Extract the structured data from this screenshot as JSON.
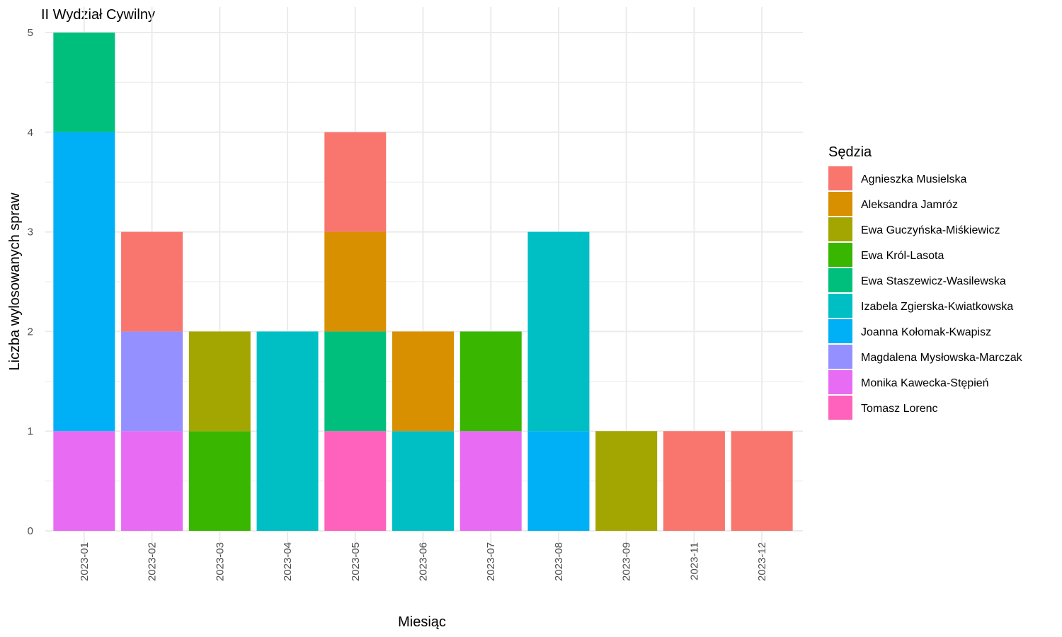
{
  "chart_data": {
    "type": "bar",
    "stacked": true,
    "title": "II Wydział Cywilny",
    "xlabel": "Miesiąc",
    "ylabel": "Liczba wylosowanych spraw",
    "ylim": [
      0,
      5
    ],
    "yticks": [
      "0",
      "1",
      "2",
      "3",
      "4",
      "5"
    ],
    "grid": true,
    "legend_position": "right",
    "legend_title": "Sędzia",
    "categories": [
      "2023-01",
      "2023-02",
      "2023-03",
      "2023-04",
      "2023-05",
      "2023-06",
      "2023-07",
      "2023-08",
      "2023-09",
      "2023-11",
      "2023-12"
    ],
    "series": [
      {
        "name": "Agnieszka Musielska",
        "color": "#F8766D",
        "values": [
          0,
          1,
          0,
          0,
          1,
          0,
          0,
          0,
          0,
          1,
          1
        ]
      },
      {
        "name": "Aleksandra Jamróz",
        "color": "#D89000",
        "values": [
          0,
          0,
          0,
          0,
          1,
          1,
          0,
          0,
          0,
          0,
          0
        ]
      },
      {
        "name": "Ewa Guczyńska-Miśkiewicz",
        "color": "#A3A500",
        "values": [
          0,
          0,
          1,
          0,
          0,
          0,
          0,
          0,
          1,
          0,
          0
        ]
      },
      {
        "name": "Ewa Król-Lasota",
        "color": "#39B600",
        "values": [
          0,
          0,
          1,
          0,
          0,
          0,
          1,
          0,
          0,
          0,
          0
        ]
      },
      {
        "name": "Ewa Staszewicz-Wasilewska",
        "color": "#00BF7D",
        "values": [
          1,
          0,
          0,
          0,
          1,
          0,
          0,
          0,
          0,
          0,
          0
        ]
      },
      {
        "name": "Izabela Zgierska-Kwiatkowska",
        "color": "#00BFC4",
        "values": [
          0,
          0,
          0,
          2,
          0,
          1,
          0,
          2,
          0,
          0,
          0
        ]
      },
      {
        "name": "Joanna Kołomak-Kwapisz",
        "color": "#00B0F6",
        "values": [
          3,
          0,
          0,
          0,
          0,
          0,
          0,
          1,
          0,
          0,
          0
        ]
      },
      {
        "name": "Magdalena Mysłowska-Marczak",
        "color": "#9590FF",
        "values": [
          0,
          1,
          0,
          0,
          0,
          0,
          0,
          0,
          0,
          0,
          0
        ]
      },
      {
        "name": "Monika Kawecka-Stępień",
        "color": "#E76BF3",
        "values": [
          1,
          1,
          0,
          0,
          0,
          0,
          1,
          0,
          0,
          0,
          0
        ]
      },
      {
        "name": "Tomasz Lorenc",
        "color": "#FF62BC",
        "values": [
          0,
          0,
          0,
          0,
          1,
          0,
          0,
          0,
          0,
          0,
          0
        ]
      }
    ]
  }
}
